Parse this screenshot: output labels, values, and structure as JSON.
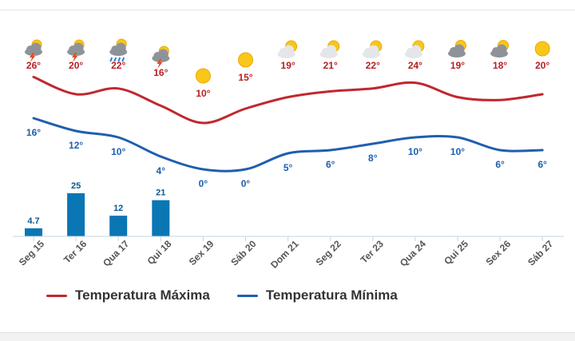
{
  "chart_data": {
    "type": "line",
    "categories": [
      "Seg 15",
      "Ter 16",
      "Qua 17",
      "Qui 18",
      "Sex 19",
      "Sáb 20",
      "Dom 21",
      "Seg 22",
      "Ter 23",
      "Qua 24",
      "Qui 25",
      "Sex 26",
      "Sáb 27"
    ],
    "series": [
      {
        "name": "Temperatura Máxima",
        "color": "#c0282d",
        "values": [
          26,
          20,
          22,
          16,
          10,
          15,
          19,
          21,
          22,
          24,
          19,
          18,
          20
        ]
      },
      {
        "name": "Temperatura Mínima",
        "color": "#1f5fae",
        "values": [
          16,
          12,
          10,
          4,
          0,
          0,
          5,
          6,
          8,
          10,
          10,
          6,
          6
        ]
      }
    ],
    "max_labels": [
      "26°",
      "20°",
      "22°",
      "16°",
      "10°",
      "15°",
      "19°",
      "21°",
      "22°",
      "24°",
      "19°",
      "18°",
      "20°"
    ],
    "min_labels": [
      "16°",
      "12°",
      "10°",
      "4°",
      "0°",
      "0°",
      "5°",
      "6°",
      "8°",
      "10°",
      "10°",
      "6°",
      "6°"
    ],
    "precipitation": {
      "color": "#0a76b3",
      "values": [
        4.7,
        25,
        12,
        21,
        null,
        null,
        null,
        null,
        null,
        null,
        null,
        null,
        null
      ],
      "labels": [
        "4.7",
        "25",
        "12",
        "21"
      ]
    },
    "icons": [
      "thunderstorm-icon",
      "thunderstorm-icon",
      "rain-icon",
      "thunderstorm-icon",
      "sun-icon",
      "sun-icon",
      "partly-cloudy-icon",
      "partly-cloudy-icon",
      "partly-cloudy-icon",
      "partly-cloudy-icon",
      "cloudy-sun-icon",
      "cloudy-sun-icon",
      "sun-icon"
    ],
    "legend_position": "bottom-left"
  }
}
